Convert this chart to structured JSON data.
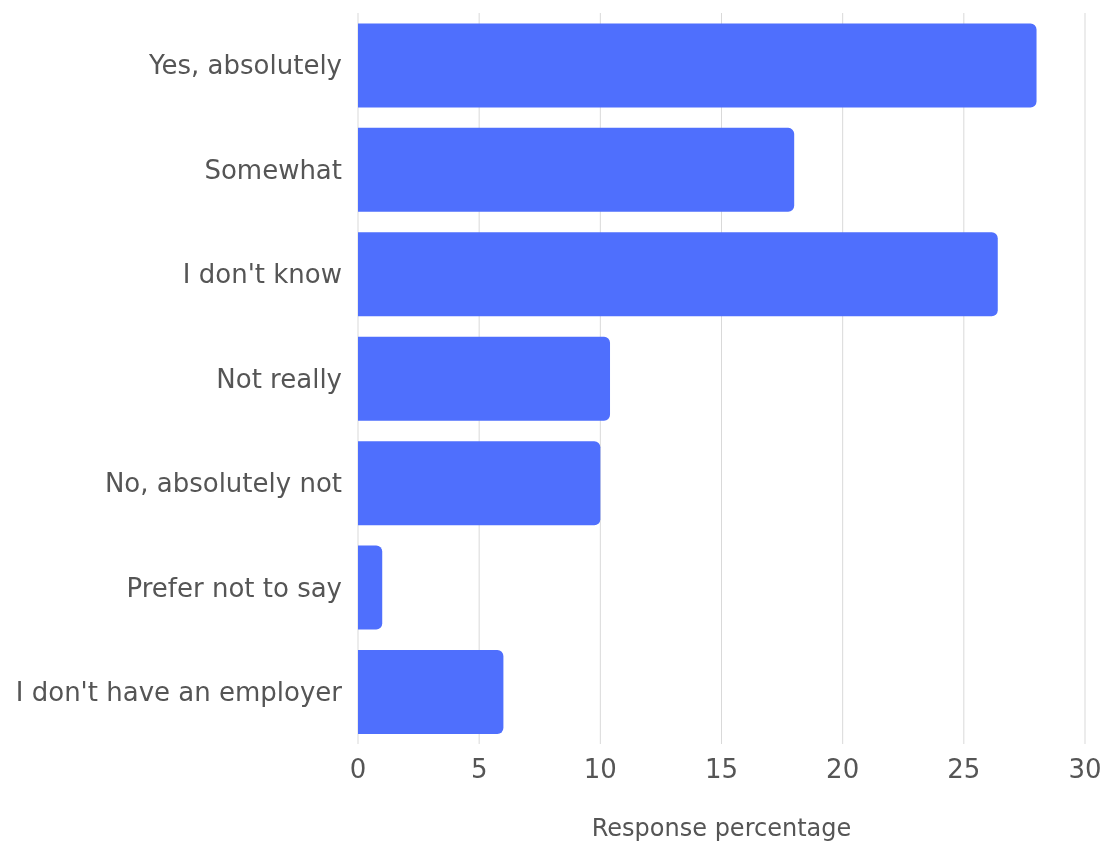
{
  "chart_data": {
    "type": "bar",
    "orientation": "horizontal",
    "xlabel": "Response percentage",
    "categories": [
      "Yes, absolutely",
      "Somewhat",
      "I don't know",
      "Not really",
      "No, absolutely not",
      "Prefer not to say",
      "I don't have an employer"
    ],
    "values": [
      28,
      18,
      26.4,
      10.4,
      10,
      1,
      6
    ],
    "color": "#4f6ffd",
    "xlim": [
      0,
      30
    ],
    "xticks": [
      0,
      5,
      10,
      15,
      20,
      25,
      30
    ],
    "grid": "x"
  }
}
